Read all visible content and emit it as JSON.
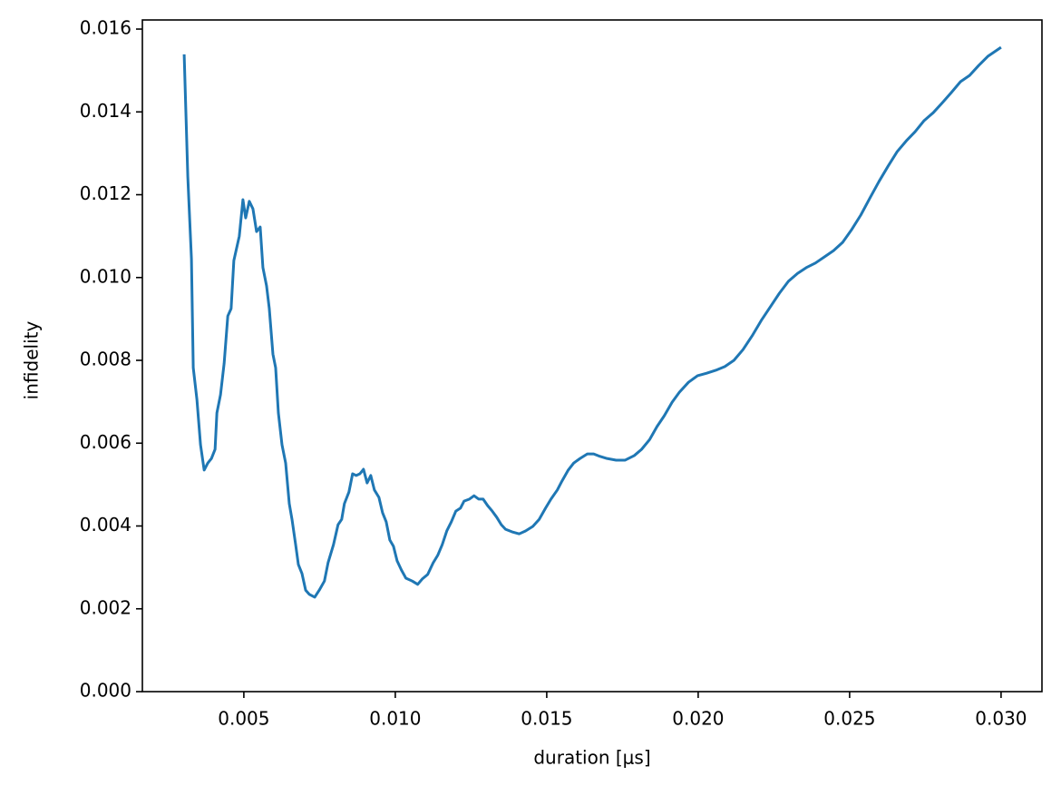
{
  "chart_data": {
    "type": "line",
    "xlabel": "duration [μs]",
    "ylabel": "infidelity",
    "color": "#1f77b4",
    "xlim": [
      0.00165,
      0.03135
    ],
    "ylim": [
      0,
      0.01622
    ],
    "xticks": [
      0.005,
      {
        "value": 0.01,
        "label": "0.010"
      },
      0.015,
      {
        "value": 0.02,
        "label": "0.020"
      },
      0.025,
      {
        "value": 0.03,
        "label": "0.030"
      }
    ],
    "yticks": [
      {
        "value": 0,
        "label": "0.000"
      },
      0.002,
      0.004,
      0.006,
      0.008,
      {
        "value": 0.01,
        "label": "0.010"
      },
      0.012,
      0.014,
      0.016
    ],
    "x": [
      0.00303,
      0.00315,
      0.00327,
      0.00333,
      0.00345,
      0.00357,
      0.00369,
      0.00381,
      0.00393,
      0.00405,
      0.00411,
      0.00423,
      0.00435,
      0.00447,
      0.00458,
      0.00467,
      0.00485,
      0.00497,
      0.00506,
      0.00518,
      0.0053,
      0.00542,
      0.00554,
      0.00563,
      0.00575,
      0.00584,
      0.00596,
      0.00605,
      0.00614,
      0.00626,
      0.00638,
      0.0065,
      0.00659,
      0.00671,
      0.0068,
      0.00692,
      0.00704,
      0.00716,
      0.00734,
      0.00749,
      0.00766,
      0.00778,
      0.00796,
      0.00811,
      0.00823,
      0.00832,
      0.00847,
      0.00859,
      0.00871,
      0.00883,
      0.00895,
      0.00907,
      0.00919,
      0.00931,
      0.00946,
      0.00958,
      0.0097,
      0.00982,
      0.00994,
      0.01006,
      0.0102,
      0.01035,
      0.01056,
      0.01074,
      0.01089,
      0.01107,
      0.01125,
      0.0114,
      0.01155,
      0.0117,
      0.01185,
      0.012,
      0.01215,
      0.01227,
      0.01245,
      0.0126,
      0.01275,
      0.0129,
      0.01305,
      0.0132,
      0.01335,
      0.0135,
      0.01364,
      0.01385,
      0.01409,
      0.0143,
      0.01454,
      0.01475,
      0.01496,
      0.01514,
      0.01535,
      0.0155,
      0.01571,
      0.01589,
      0.0161,
      0.01634,
      0.01655,
      0.01676,
      0.01699,
      0.01729,
      0.01759,
      0.01789,
      0.01813,
      0.0184,
      0.01864,
      0.01888,
      0.01914,
      0.01938,
      0.01968,
      0.01998,
      0.02028,
      0.02058,
      0.02088,
      0.02118,
      0.02148,
      0.02178,
      0.02208,
      0.02238,
      0.02268,
      0.02298,
      0.02328,
      0.02357,
      0.02387,
      0.02417,
      0.02447,
      0.02477,
      0.02507,
      0.02537,
      0.02567,
      0.02597,
      0.02627,
      0.02657,
      0.02687,
      0.02716,
      0.02746,
      0.02776,
      0.02806,
      0.02836,
      0.02866,
      0.02896,
      0.02926,
      0.02956,
      0.03
    ],
    "values": [
      0.01539,
      0.01243,
      0.01045,
      0.00782,
      0.00706,
      0.00596,
      0.00535,
      0.00552,
      0.00563,
      0.00585,
      0.00673,
      0.00717,
      0.00793,
      0.00907,
      0.00925,
      0.01041,
      0.011,
      0.01188,
      0.01144,
      0.01184,
      0.01166,
      0.01111,
      0.01122,
      0.01024,
      0.0098,
      0.00925,
      0.00815,
      0.00782,
      0.00673,
      0.00596,
      0.00552,
      0.00454,
      0.00416,
      0.00355,
      0.00307,
      0.00285,
      0.00245,
      0.00235,
      0.00228,
      0.00245,
      0.00267,
      0.00311,
      0.00355,
      0.00403,
      0.00416,
      0.00454,
      0.00482,
      0.00526,
      0.00522,
      0.00526,
      0.00537,
      0.00504,
      0.00522,
      0.00487,
      0.00469,
      0.00432,
      0.0041,
      0.00366,
      0.00351,
      0.00316,
      0.00294,
      0.00274,
      0.00267,
      0.00259,
      0.00272,
      0.00283,
      0.00311,
      0.00329,
      0.00355,
      0.00388,
      0.0041,
      0.00436,
      0.00443,
      0.0046,
      0.00465,
      0.00473,
      0.00465,
      0.00465,
      0.00449,
      0.00436,
      0.00421,
      0.00403,
      0.00392,
      0.00386,
      0.00381,
      0.00388,
      0.00399,
      0.00416,
      0.00443,
      0.00465,
      0.00487,
      0.00508,
      0.00535,
      0.00552,
      0.00563,
      0.00574,
      0.00574,
      0.00568,
      0.00563,
      0.00559,
      0.00559,
      0.0057,
      0.00585,
      0.00609,
      0.0064,
      0.00666,
      0.00699,
      0.00723,
      0.00747,
      0.00763,
      0.00769,
      0.00776,
      0.00785,
      0.008,
      0.00826,
      0.00859,
      0.00896,
      0.00929,
      0.00962,
      0.00991,
      0.0101,
      0.01024,
      0.01035,
      0.0105,
      0.01065,
      0.01085,
      0.01116,
      0.01151,
      0.01192,
      0.01232,
      0.01269,
      0.01304,
      0.0133,
      0.01352,
      0.01379,
      0.01398,
      0.01422,
      0.01447,
      0.01473,
      0.01488,
      0.01512,
      0.01534,
      0.01556
    ]
  }
}
